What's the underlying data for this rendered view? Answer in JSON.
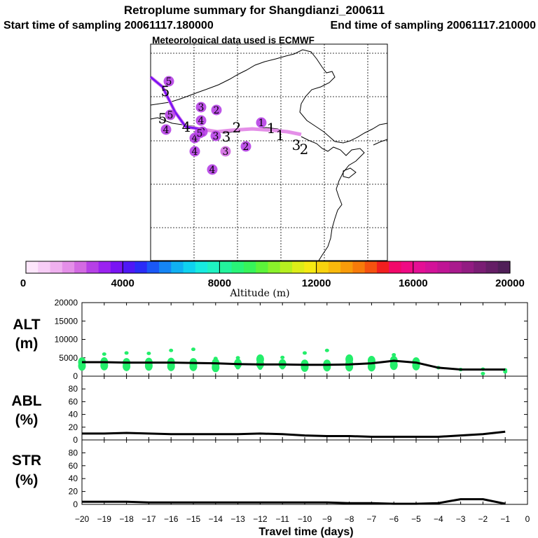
{
  "header": {
    "title": "Retroplume summary for Shangdianzi_200611",
    "start_time": "Start time of sampling 20061117.180000",
    "end_time": "End time of sampling 20061117.210000",
    "met_data": "Meteorological data used is ECMWF"
  },
  "colorbar": {
    "label": "Altitude (m)",
    "ticks": [
      "0",
      "4000",
      "8000",
      "12000",
      "16000",
      "20000"
    ],
    "colors": [
      "#fde6fb",
      "#f7cdf6",
      "#efb0ef",
      "#e48fe8",
      "#d36ae2",
      "#b640e6",
      "#9b22f0",
      "#7a14f4",
      "#4f18f6",
      "#2a2cf7",
      "#1a58f7",
      "#1585f5",
      "#10b0f2",
      "#0fd2ef",
      "#17ebe0",
      "#1ff2c2",
      "#23f49c",
      "#29f578",
      "#37f45a",
      "#5cf43a",
      "#8af22b",
      "#b6ef20",
      "#dded18",
      "#f6ea12",
      "#f9d30e",
      "#f9b90c",
      "#f89b0a",
      "#f77b0a",
      "#f5520f",
      "#f21f1f",
      "#f2086a",
      "#ef0a84",
      "#e40f95",
      "#d31299",
      "#bf1595",
      "#a91a8d",
      "#921c82",
      "#7a1d74",
      "#651e66",
      "#501f58"
    ]
  },
  "map": {
    "trajectory_labels": [
      {
        "t": "5",
        "kind": "dot",
        "alt": 2500
      },
      {
        "t": "5",
        "kind": "text"
      },
      {
        "t": "3",
        "kind": "dot",
        "alt": 2500
      },
      {
        "t": "2",
        "kind": "dot",
        "alt": 2500
      },
      {
        "t": "5",
        "kind": "dot",
        "alt": 2800
      },
      {
        "t": "5",
        "kind": "text"
      },
      {
        "t": "4",
        "kind": "dot",
        "alt": 2500
      },
      {
        "t": "4",
        "kind": "text"
      },
      {
        "t": "4",
        "kind": "dot",
        "alt": 2500
      },
      {
        "t": "2",
        "kind": "dot",
        "alt": 2500
      },
      {
        "t": "4",
        "kind": "dot",
        "alt": 2500
      },
      {
        "t": "3",
        "kind": "dot",
        "alt": 2500
      },
      {
        "t": "3",
        "kind": "text"
      },
      {
        "t": "2",
        "kind": "text"
      },
      {
        "t": "1",
        "kind": "dot",
        "alt": 2800
      },
      {
        "t": "1",
        "kind": "text"
      },
      {
        "t": "1",
        "kind": "text"
      },
      {
        "t": "3",
        "kind": "text"
      },
      {
        "t": "2",
        "kind": "text"
      },
      {
        "t": "5",
        "kind": "dot",
        "alt": 2500
      },
      {
        "t": "4",
        "kind": "dot",
        "alt": 2500
      },
      {
        "t": "3",
        "kind": "dot",
        "alt": 2000
      },
      {
        "t": "2",
        "kind": "dot",
        "alt": 2500
      },
      {
        "t": "4",
        "kind": "dot",
        "alt": 2800
      }
    ]
  },
  "chart_data": {
    "type": "line",
    "xlabel": "Travel time (days)",
    "xlim": [
      -20,
      0
    ],
    "x_ticks": [
      "−20",
      "−19",
      "−18",
      "−17",
      "−16",
      "−15",
      "−14",
      "−13",
      "−12",
      "−11",
      "−10",
      "−9",
      "−8",
      "−7",
      "−6",
      "−5",
      "−4",
      "−3",
      "−2",
      "−1",
      "0"
    ],
    "panels": [
      {
        "name": "alt",
        "label_line1": "ALT",
        "label_line2": "(m)",
        "ylim": [
          0,
          20000
        ],
        "y_ticks": [
          "0",
          "5000",
          "10000",
          "15000",
          "20000"
        ],
        "line": {
          "x": [
            -20,
            -19,
            -18,
            -17,
            -16,
            -15,
            -14,
            -13,
            -12,
            -11,
            -10,
            -9,
            -8,
            -7,
            -6,
            -5,
            -4,
            -3,
            -2,
            -1
          ],
          "y": [
            3800,
            3800,
            3700,
            3700,
            3700,
            3600,
            3500,
            3300,
            3200,
            3200,
            3100,
            3100,
            3200,
            3500,
            4200,
            3700,
            2300,
            1800,
            1800,
            1800
          ]
        },
        "scatter": [
          {
            "x": -20,
            "y": 3800
          },
          {
            "x": -20,
            "y": 2800
          },
          {
            "x": -19,
            "y": 3800
          },
          {
            "x": -19,
            "y": 2900
          },
          {
            "x": -19,
            "y": 6000
          },
          {
            "x": -18,
            "y": 3600
          },
          {
            "x": -18,
            "y": 2700
          },
          {
            "x": -18,
            "y": 6300
          },
          {
            "x": -17,
            "y": 3700
          },
          {
            "x": -17,
            "y": 2800
          },
          {
            "x": -17,
            "y": 6200
          },
          {
            "x": -16,
            "y": 3700
          },
          {
            "x": -16,
            "y": 2700
          },
          {
            "x": -16,
            "y": 7000
          },
          {
            "x": -15,
            "y": 3600
          },
          {
            "x": -15,
            "y": 2700
          },
          {
            "x": -15,
            "y": 7300
          },
          {
            "x": -14,
            "y": 3500
          },
          {
            "x": -14,
            "y": 2400
          },
          {
            "x": -14,
            "y": 4800
          },
          {
            "x": -13,
            "y": 3400
          },
          {
            "x": -13,
            "y": 2300
          },
          {
            "x": -13,
            "y": 5000
          },
          {
            "x": -12,
            "y": 3300
          },
          {
            "x": -12,
            "y": 2200
          },
          {
            "x": -12,
            "y": 4600
          },
          {
            "x": -11,
            "y": 3300
          },
          {
            "x": -11,
            "y": 2300
          },
          {
            "x": -11,
            "y": 5100
          },
          {
            "x": -10,
            "y": 3200
          },
          {
            "x": -10,
            "y": 2500
          },
          {
            "x": -10,
            "y": 6300
          },
          {
            "x": -9,
            "y": 3200
          },
          {
            "x": -9,
            "y": 2600
          },
          {
            "x": -9,
            "y": 7000
          },
          {
            "x": -8,
            "y": 3400
          },
          {
            "x": -8,
            "y": 2600
          },
          {
            "x": -8,
            "y": 4600
          },
          {
            "x": -7,
            "y": 4200
          },
          {
            "x": -7,
            "y": 2600
          },
          {
            "x": -7,
            "y": 5000
          },
          {
            "x": -6,
            "y": 4200
          },
          {
            "x": -6,
            "y": 3000
          },
          {
            "x": -6,
            "y": 5800
          },
          {
            "x": -5,
            "y": 3800
          },
          {
            "x": -5,
            "y": 2900
          },
          {
            "x": -4,
            "y": 2300
          },
          {
            "x": -3,
            "y": 1800
          },
          {
            "x": -2,
            "y": 1900
          },
          {
            "x": -2,
            "y": 700
          },
          {
            "x": -1,
            "y": 1700
          },
          {
            "x": -1,
            "y": 1200
          }
        ]
      },
      {
        "name": "abl",
        "label_line1": "ABL",
        "label_line2": "(%)",
        "ylim": [
          0,
          100
        ],
        "y_ticks": [
          "0",
          "20",
          "40",
          "60",
          "80"
        ],
        "line": {
          "x": [
            -20,
            -19,
            -18,
            -17,
            -16,
            -15,
            -14,
            -13,
            -12,
            -11,
            -10,
            -9,
            -8,
            -7,
            -6,
            -5,
            -4,
            -3,
            -2,
            -1
          ],
          "y": [
            10,
            10,
            11,
            10,
            9,
            9,
            9,
            9,
            10,
            9,
            7,
            6,
            6,
            5,
            5,
            5,
            5,
            7,
            9,
            13
          ]
        }
      },
      {
        "name": "str",
        "label_line1": "STR",
        "label_line2": "(%)",
        "ylim": [
          0,
          100
        ],
        "y_ticks": [
          "0",
          "20",
          "40",
          "60",
          "80"
        ],
        "line": {
          "x": [
            -20,
            -19,
            -18,
            -17,
            -16,
            -15,
            -14,
            -13,
            -12,
            -11,
            -10,
            -9,
            -8,
            -7,
            -6,
            -5,
            -4,
            -3,
            -2,
            -1
          ],
          "y": [
            4,
            4,
            4,
            3,
            3,
            3,
            3,
            3,
            3,
            3,
            3,
            3,
            2,
            2,
            1,
            1,
            2,
            8,
            8,
            1
          ]
        }
      }
    ]
  }
}
